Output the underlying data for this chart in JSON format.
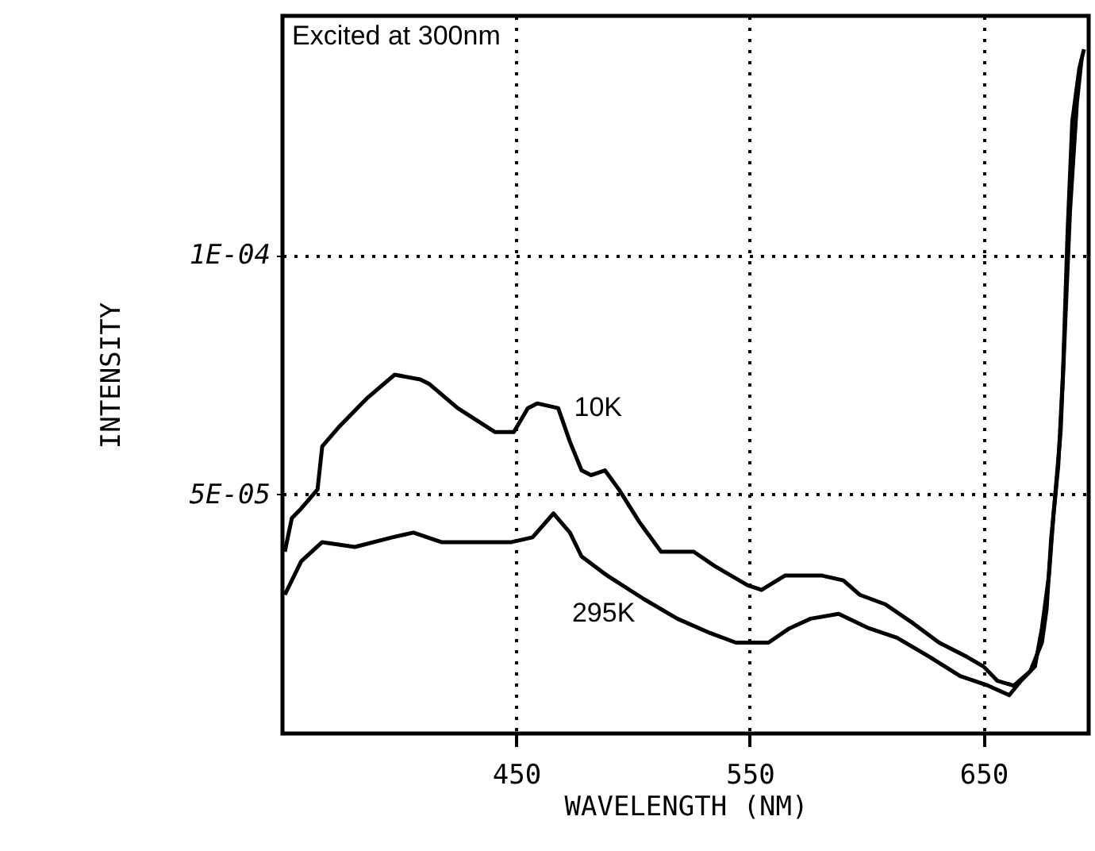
{
  "chart_data": {
    "type": "line",
    "xlabel": "WAVELENGTH (NM)",
    "ylabel": "INTENSITY",
    "xlim": [
      350,
      695
    ],
    "ylim": [
      0,
      0.00015
    ],
    "xticks": [
      450,
      550,
      650
    ],
    "yticks": [
      {
        "value": 0.0001,
        "label": "1E-04"
      },
      {
        "value": 5e-05,
        "label": "5E-05"
      }
    ],
    "grid": true,
    "line_style": "solid",
    "marker": "none",
    "annotations": [
      "Excited at 300nm",
      {
        "text": "10K",
        "x": 468,
        "y": 6.8e-05
      },
      {
        "text": "295K",
        "x": 478,
        "y": 3.7e-05
      }
    ],
    "series": [
      {
        "color": "#000000",
        "x": [
          351,
          354,
          358,
          365,
          367,
          374,
          386,
          398,
          409,
          413,
          425,
          441,
          449,
          455,
          459,
          468,
          473,
          478,
          482,
          488,
          494,
          503,
          512,
          526,
          535,
          549,
          555,
          565,
          581,
          590,
          597,
          608,
          620,
          631,
          643,
          650,
          656,
          663,
          670,
          675,
          677,
          679,
          682,
          684,
          686,
          688,
          691,
          693
        ],
        "values": [
          3.8e-05,
          4.5e-05,
          4.7e-05,
          5.1e-05,
          6e-05,
          6.4e-05,
          7e-05,
          7.5e-05,
          7.4e-05,
          7.3e-05,
          6.8e-05,
          6.3e-05,
          6.3e-05,
          6.8e-05,
          6.9e-05,
          6.8e-05,
          6.1e-05,
          5.5e-05,
          5.4e-05,
          5.5e-05,
          5.1e-05,
          4.4e-05,
          3.8e-05,
          3.8e-05,
          3.5e-05,
          3.1e-05,
          3e-05,
          3.3e-05,
          3.3e-05,
          3.2e-05,
          2.9e-05,
          2.7e-05,
          2.3e-05,
          1.9e-05,
          1.6e-05,
          1.4e-05,
          1.1e-05,
          1e-05,
          1.3e-05,
          1.9e-05,
          2.6e-05,
          4.1e-05,
          5.6e-05,
          7.5e-05,
          0.000105,
          0.000128,
          0.000139,
          0.000143
        ]
      },
      {
        "color": "#000000",
        "x": [
          351,
          358,
          367,
          381,
          397,
          406,
          418,
          436,
          448,
          457,
          466,
          473,
          478,
          489,
          505,
          519,
          533,
          544,
          558,
          567,
          576,
          588,
          601,
          613,
          627,
          640,
          652,
          661,
          666,
          672,
          675,
          678,
          680,
          683,
          685,
          687,
          690,
          692
        ],
        "values": [
          2.9e-05,
          3.6e-05,
          4e-05,
          3.9e-05,
          4.1e-05,
          4.2e-05,
          4e-05,
          4e-05,
          4e-05,
          4.1e-05,
          4.6e-05,
          4.2e-05,
          3.7e-05,
          3.3e-05,
          2.8e-05,
          2.4e-05,
          2.1e-05,
          1.9e-05,
          1.9e-05,
          2.2e-05,
          2.4e-05,
          2.5e-05,
          2.2e-05,
          2e-05,
          1.6e-05,
          1.2e-05,
          1e-05,
          8e-06,
          1.1e-05,
          1.4e-05,
          2.2e-05,
          3.3e-05,
          4.6e-05,
          6.3e-05,
          8.6e-05,
          0.000109,
          0.000132,
          0.000141
        ]
      }
    ]
  }
}
